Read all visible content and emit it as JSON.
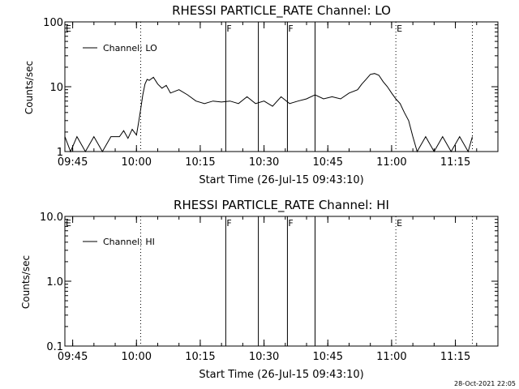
{
  "footer": {
    "timestamp": "28-Oct-2021 22:05"
  },
  "chart_data": [
    {
      "type": "line",
      "title": "RHESSI PARTICLE_RATE Channel: LO",
      "xlabel": "Start Time (26-Jul-15 09:43:10)",
      "ylabel": "Counts/sec",
      "y_scale": "log",
      "ylim": [
        1,
        100
      ],
      "y_ticks": [
        1,
        10,
        100
      ],
      "y_tick_labels": [
        "1",
        "10",
        "100"
      ],
      "xlim": [
        "09:43:10",
        "11:25:00"
      ],
      "x_ticks": [
        "09:45",
        "10:00",
        "10:15",
        "10:30",
        "10:45",
        "11:00",
        "11:15"
      ],
      "legend": {
        "position": "top-left",
        "entries": [
          "Channel: LO"
        ]
      },
      "vlines_solid": [
        "10:21:00",
        "10:28:40",
        "10:35:30",
        "10:42:00"
      ],
      "vlines_dotted": [
        "10:01:00",
        "11:01:00",
        "11:19:00"
      ],
      "flags": [
        {
          "label": "E",
          "time": "09:43:10"
        },
        {
          "label": "F",
          "time": "10:21:00"
        },
        {
          "label": "F",
          "time": "10:35:30"
        },
        {
          "label": "E",
          "time": "11:01:00"
        }
      ],
      "series": [
        {
          "name": "Channel: LO",
          "x": [
            "09:43:10",
            "09:44:30",
            "09:46:00",
            "09:48:00",
            "09:50:00",
            "09:52:00",
            "09:54:00",
            "09:56:00",
            "09:57:00",
            "09:58:00",
            "09:59:00",
            "10:00:00",
            "10:00:30",
            "10:01:00",
            "10:01:30",
            "10:02:00",
            "10:02:30",
            "10:03:00",
            "10:04:00",
            "10:05:00",
            "10:06:00",
            "10:07:00",
            "10:08:00",
            "10:10:00",
            "10:12:00",
            "10:14:00",
            "10:16:00",
            "10:18:00",
            "10:20:00",
            "10:22:00",
            "10:24:00",
            "10:26:00",
            "10:28:00",
            "10:30:00",
            "10:32:00",
            "10:34:00",
            "10:36:00",
            "10:38:00",
            "10:40:00",
            "10:42:00",
            "10:44:00",
            "10:46:00",
            "10:48:00",
            "10:50:00",
            "10:52:00",
            "10:53:00",
            "10:54:00",
            "10:55:00",
            "10:56:00",
            "10:57:00",
            "10:58:00",
            "10:59:00",
            "11:00:00",
            "11:01:00",
            "11:02:00",
            "11:03:00",
            "11:04:00",
            "11:05:00",
            "11:06:00",
            "11:08:00",
            "11:10:00",
            "11:12:00",
            "11:14:00",
            "11:16:00",
            "11:18:00",
            "11:19:00"
          ],
          "y": [
            1.7,
            1.0,
            1.7,
            1.0,
            1.7,
            1.0,
            1.7,
            1.7,
            2.1,
            1.6,
            2.2,
            1.8,
            2.8,
            4.5,
            7.5,
            11,
            13,
            12.5,
            14,
            11,
            9.5,
            10.5,
            8,
            9,
            7.5,
            6,
            5.5,
            6,
            5.8,
            6,
            5.5,
            7,
            5.5,
            6,
            5,
            7,
            5.5,
            6,
            6.5,
            7.5,
            6.5,
            7,
            6.5,
            8,
            9,
            11,
            13,
            15.5,
            16,
            15,
            12,
            10,
            8,
            6.5,
            5.5,
            4,
            3,
            1.7,
            1,
            1.7,
            1,
            1.7,
            1,
            1.7,
            1,
            1.7
          ]
        }
      ]
    },
    {
      "type": "line",
      "title": "RHESSI PARTICLE_RATE Channel: HI",
      "xlabel": "Start Time (26-Jul-15 09:43:10)",
      "ylabel": "Counts/sec",
      "y_scale": "log",
      "ylim": [
        0.1,
        10
      ],
      "y_ticks": [
        0.1,
        1.0,
        10.0
      ],
      "y_tick_labels": [
        "0.1",
        "1.0",
        "10.0"
      ],
      "xlim": [
        "09:43:10",
        "11:25:00"
      ],
      "x_ticks": [
        "09:45",
        "10:00",
        "10:15",
        "10:30",
        "10:45",
        "11:00",
        "11:15"
      ],
      "legend": {
        "position": "top-left",
        "entries": [
          "Channel: HI"
        ]
      },
      "vlines_solid": [
        "10:21:00",
        "10:28:40",
        "10:35:30",
        "10:42:00"
      ],
      "vlines_dotted": [
        "10:01:00",
        "11:01:00",
        "11:19:00"
      ],
      "flags": [
        {
          "label": "E",
          "time": "09:43:10"
        },
        {
          "label": "F",
          "time": "10:21:00"
        },
        {
          "label": "F",
          "time": "10:35:30"
        },
        {
          "label": "E",
          "time": "11:01:00"
        }
      ],
      "series": [
        {
          "name": "Channel: HI",
          "x": [],
          "y": []
        }
      ]
    }
  ]
}
